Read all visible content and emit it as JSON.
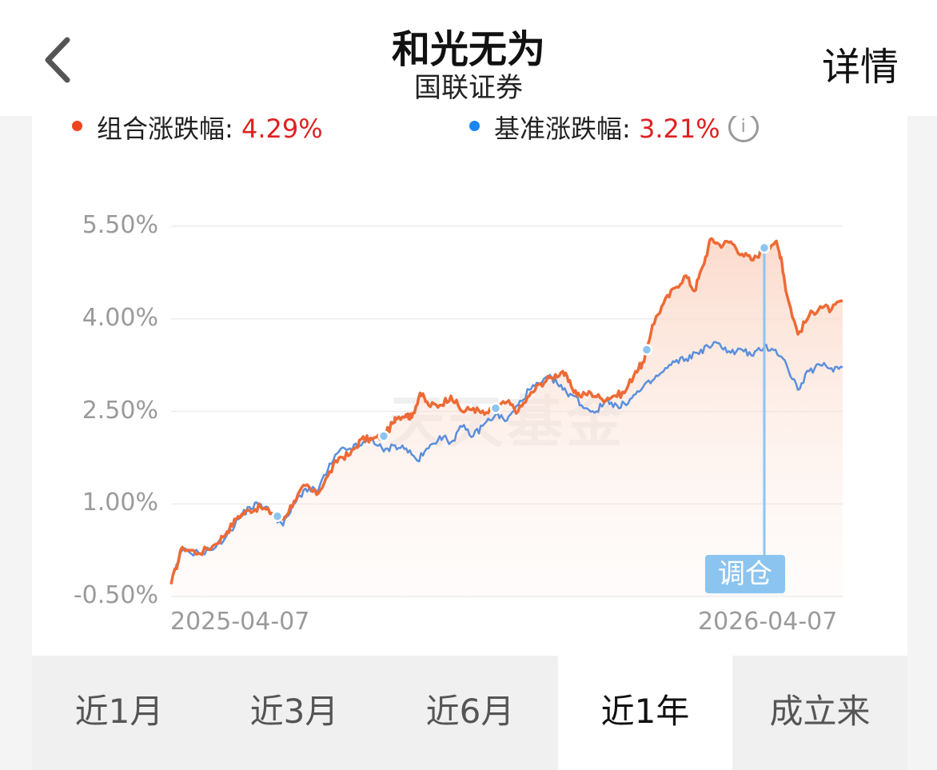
{
  "header": {
    "title": "和光无为",
    "subtitle": "国联证券",
    "detail_label": "详情"
  },
  "legend": {
    "portfolio_label": "组合涨跌幅:",
    "portfolio_value": "4.29%",
    "benchmark_label": "基准涨跌幅:",
    "benchmark_value": "3.21%",
    "info_glyph": "i"
  },
  "colors": {
    "portfolio": "#ee6a35",
    "benchmark": "#5b8fdc",
    "marker": "#8cc4f0",
    "value_red": "#e02020"
  },
  "watermark": "天天基金",
  "rebalance_label": "调仓",
  "tabs": [
    {
      "label": "近1月",
      "active": false
    },
    {
      "label": "近3月",
      "active": false
    },
    {
      "label": "近6月",
      "active": false
    },
    {
      "label": "近1年",
      "active": true
    },
    {
      "label": "成立来",
      "active": false
    }
  ],
  "chart_data": {
    "type": "line",
    "title": "",
    "xlabel": "",
    "ylabel": "",
    "x_start": "2025-04-07",
    "x_end": "2026-04-07",
    "x_tick_labels": [
      "2025-04-07",
      "2026-04-07"
    ],
    "y_tick_labels": [
      "5.50%",
      "4.00%",
      "2.50%",
      "1.00%",
      "-0.50%"
    ],
    "y_ticks": [
      5.5,
      4.0,
      2.5,
      1.0,
      -0.5
    ],
    "ylim": [
      -0.5,
      5.5
    ],
    "grid": true,
    "legend_position": "top",
    "series": [
      {
        "name": "组合涨跌幅",
        "color": "#ee6a35",
        "area_fill": true,
        "points": [
          [
            0,
            -0.3
          ],
          [
            0.02,
            0.3
          ],
          [
            0.05,
            0.2
          ],
          [
            0.08,
            0.35
          ],
          [
            0.1,
            0.55
          ],
          [
            0.12,
            0.8
          ],
          [
            0.14,
            0.9
          ],
          [
            0.16,
            0.95
          ],
          [
            0.18,
            0.85
          ],
          [
            0.2,
            0.75
          ],
          [
            0.22,
            1.05
          ],
          [
            0.24,
            1.3
          ],
          [
            0.26,
            1.15
          ],
          [
            0.28,
            1.45
          ],
          [
            0.3,
            1.75
          ],
          [
            0.32,
            1.8
          ],
          [
            0.34,
            2.05
          ],
          [
            0.36,
            2.05
          ],
          [
            0.38,
            2.1
          ],
          [
            0.4,
            2.35
          ],
          [
            0.42,
            2.45
          ],
          [
            0.4,
            2.4
          ],
          [
            0.43,
            2.4
          ],
          [
            0.445,
            2.8
          ],
          [
            0.46,
            2.6
          ],
          [
            0.48,
            2.6
          ],
          [
            0.5,
            2.75
          ],
          [
            0.52,
            2.5
          ],
          [
            0.54,
            2.55
          ],
          [
            0.56,
            2.45
          ],
          [
            0.58,
            2.55
          ],
          [
            0.6,
            2.65
          ],
          [
            0.62,
            2.5
          ],
          [
            0.64,
            2.75
          ],
          [
            0.66,
            2.95
          ],
          [
            0.68,
            3.05
          ],
          [
            0.7,
            3.15
          ],
          [
            0.715,
            2.9
          ],
          [
            0.73,
            2.75
          ],
          [
            0.75,
            2.8
          ],
          [
            0.77,
            2.7
          ],
          [
            0.79,
            2.75
          ],
          [
            0.81,
            2.8
          ],
          [
            0.83,
            3.15
          ],
          [
            0.845,
            3.3
          ],
          [
            0.86,
            3.9
          ],
          [
            0.88,
            4.25
          ],
          [
            0.9,
            4.5
          ],
          [
            0.92,
            4.7
          ],
          [
            0.935,
            4.45
          ],
          [
            0.95,
            4.85
          ],
          [
            0.965,
            5.3
          ],
          [
            0.98,
            5.2
          ],
          [
            1.0,
            5.25
          ],
          [
            1.02,
            5.05
          ],
          [
            1.04,
            4.95
          ],
          [
            1.06,
            5.15
          ],
          [
            1.08,
            5.25
          ],
          [
            1.09,
            5.0
          ],
          [
            1.1,
            4.4
          ],
          [
            1.12,
            3.75
          ],
          [
            1.14,
            4.05
          ],
          [
            1.16,
            4.2
          ],
          [
            1.18,
            4.15
          ],
          [
            1.2,
            4.29
          ]
        ]
      },
      {
        "name": "基准涨跌幅",
        "color": "#5b8fdc",
        "area_fill": false,
        "points": [
          [
            0,
            -0.3
          ],
          [
            0.02,
            0.25
          ],
          [
            0.05,
            0.2
          ],
          [
            0.08,
            0.3
          ],
          [
            0.1,
            0.5
          ],
          [
            0.12,
            0.75
          ],
          [
            0.14,
            0.95
          ],
          [
            0.16,
            1.0
          ],
          [
            0.18,
            0.85
          ],
          [
            0.2,
            0.65
          ],
          [
            0.22,
            1.0
          ],
          [
            0.24,
            1.25
          ],
          [
            0.26,
            1.2
          ],
          [
            0.28,
            1.55
          ],
          [
            0.3,
            1.85
          ],
          [
            0.32,
            1.9
          ],
          [
            0.34,
            1.95
          ],
          [
            0.36,
            2.05
          ],
          [
            0.38,
            1.85
          ],
          [
            0.4,
            1.95
          ],
          [
            0.42,
            1.9
          ],
          [
            0.44,
            1.7
          ],
          [
            0.46,
            1.9
          ],
          [
            0.48,
            2.1
          ],
          [
            0.5,
            2.0
          ],
          [
            0.52,
            2.25
          ],
          [
            0.54,
            2.1
          ],
          [
            0.56,
            2.3
          ],
          [
            0.58,
            2.45
          ],
          [
            0.6,
            2.35
          ],
          [
            0.62,
            2.6
          ],
          [
            0.64,
            2.85
          ],
          [
            0.66,
            2.95
          ],
          [
            0.68,
            3.05
          ],
          [
            0.7,
            2.85
          ],
          [
            0.72,
            2.75
          ],
          [
            0.74,
            2.55
          ],
          [
            0.76,
            2.5
          ],
          [
            0.78,
            2.7
          ],
          [
            0.8,
            2.55
          ],
          [
            0.82,
            2.7
          ],
          [
            0.84,
            2.85
          ],
          [
            0.86,
            3.0
          ],
          [
            0.88,
            3.15
          ],
          [
            0.9,
            3.3
          ],
          [
            0.92,
            3.35
          ],
          [
            0.94,
            3.45
          ],
          [
            0.96,
            3.55
          ],
          [
            0.98,
            3.6
          ],
          [
            1.0,
            3.45
          ],
          [
            1.02,
            3.5
          ],
          [
            1.04,
            3.4
          ],
          [
            1.06,
            3.55
          ],
          [
            1.08,
            3.5
          ],
          [
            1.1,
            3.25
          ],
          [
            1.12,
            2.85
          ],
          [
            1.14,
            3.15
          ],
          [
            1.16,
            3.25
          ],
          [
            1.18,
            3.2
          ],
          [
            1.2,
            3.21
          ]
        ]
      }
    ],
    "rebalance_markers": [
      0.19,
      0.38,
      0.58,
      0.85,
      1.06
    ]
  }
}
